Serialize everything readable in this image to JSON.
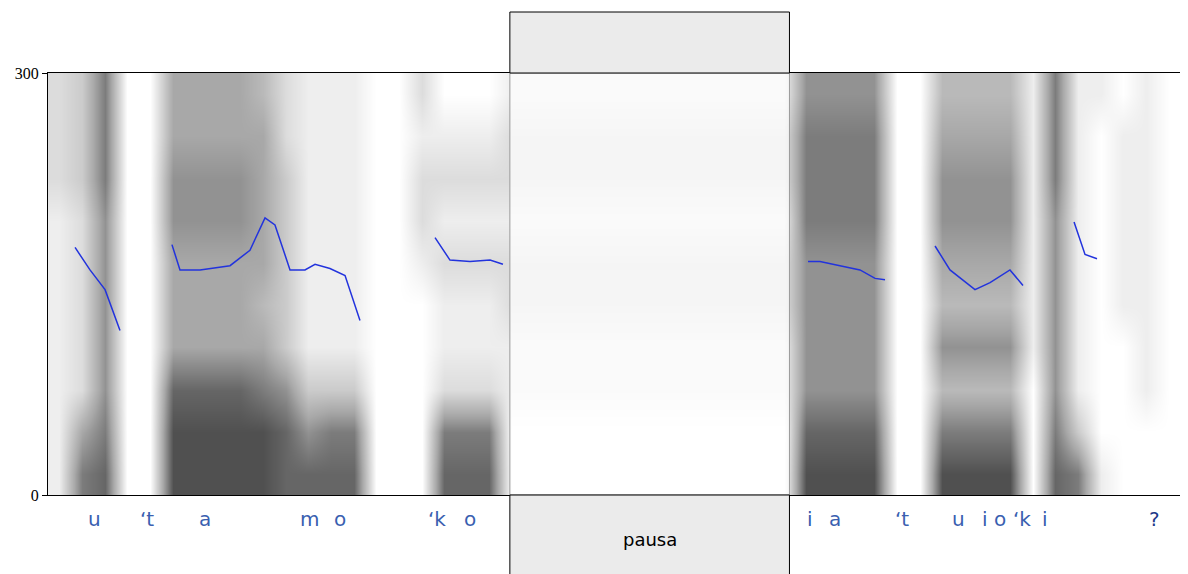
{
  "chart_data": {
    "type": "spectrogram",
    "ylim": [
      0,
      300
    ],
    "yticks": [
      0,
      300
    ],
    "xlim": [
      0,
      100
    ],
    "tick_labels": "y",
    "grid": false,
    "color": "#2233dd",
    "x": [
      2.39,
      3.71,
      5.04,
      6.36,
      null,
      10.95,
      11.66,
      13.43,
      16.08,
      17.84,
      19.17,
      20.05,
      21.38,
      22.7,
      23.59,
      24.91,
      26.24,
      27.56,
      null,
      34.19,
      35.51,
      37.28,
      39.05,
      40.19,
      null,
      67.14,
      68.2,
      69.96,
      71.73,
      73.06,
      73.94,
      null,
      78.36,
      79.68,
      81.89,
      83.22,
      84.98,
      86.13,
      null,
      90.64,
      91.61,
      92.67
    ],
    "values": [
      176,
      160,
      146,
      117,
      null,
      178,
      160,
      160,
      163,
      174,
      197,
      192,
      160,
      160,
      164,
      161,
      156,
      124,
      null,
      183,
      167,
      166,
      167,
      164,
      null,
      166,
      166,
      163,
      160,
      154,
      153,
      null,
      177,
      160,
      146,
      151,
      160,
      149,
      null,
      194,
      171,
      168
    ],
    "cells": {
      "x": [
        1,
        3,
        5,
        7,
        9,
        11,
        13,
        15,
        17,
        19,
        21,
        23,
        25,
        27,
        29,
        31,
        33,
        35,
        37,
        39,
        41,
        43,
        45,
        47,
        49,
        51,
        53,
        55,
        57,
        59,
        61,
        63,
        65,
        67,
        69,
        71,
        73,
        75,
        77,
        79,
        81,
        83,
        85,
        87,
        89,
        91,
        93,
        95,
        97,
        99
      ],
      "y": [
        15,
        45,
        75,
        105,
        135,
        165,
        195,
        225,
        255,
        285
      ],
      "zlim": [
        0,
        10
      ],
      "z": [
        [
          1,
          1,
          1,
          1,
          1,
          1,
          1,
          2,
          2,
          2
        ],
        [
          7,
          5,
          2,
          2,
          2,
          2,
          2,
          3,
          3,
          3
        ],
        [
          8,
          7,
          6,
          6,
          6,
          6,
          6,
          7,
          7,
          7
        ],
        [
          0,
          0,
          0,
          0,
          0,
          0,
          0,
          0,
          0,
          0
        ],
        [
          0,
          0,
          0,
          0,
          0,
          0,
          0,
          0,
          0,
          0
        ],
        [
          9,
          9,
          8,
          5,
          5,
          5,
          6,
          6,
          5,
          5
        ],
        [
          9,
          9,
          8,
          5,
          5,
          5,
          6,
          6,
          5,
          5
        ],
        [
          9,
          9,
          8,
          5,
          5,
          5,
          6,
          6,
          5,
          5
        ],
        [
          9,
          9,
          8,
          5,
          5,
          5,
          6,
          6,
          5,
          5
        ],
        [
          9,
          9,
          7,
          5,
          4,
          5,
          5,
          5,
          5,
          4
        ],
        [
          8,
          8,
          6,
          3,
          3,
          3,
          3,
          3,
          2,
          2
        ],
        [
          8,
          6,
          3,
          1,
          1,
          1,
          1,
          1,
          1,
          1
        ],
        [
          8,
          7,
          3,
          1,
          1,
          1,
          1,
          1,
          1,
          1
        ],
        [
          8,
          7,
          3,
          1,
          1,
          1,
          1,
          1,
          1,
          1
        ],
        [
          0,
          0,
          0,
          0,
          0,
          0,
          0,
          0,
          0,
          0
        ],
        [
          0,
          0,
          0,
          0,
          0,
          0,
          0,
          0,
          0,
          0
        ],
        [
          0,
          0,
          0,
          0,
          0,
          1,
          2,
          2,
          1,
          2
        ],
        [
          8,
          7,
          2,
          1,
          1,
          2,
          1,
          2,
          1,
          0
        ],
        [
          8,
          7,
          2,
          1,
          1,
          2,
          1,
          2,
          1,
          0
        ],
        [
          8,
          7,
          2,
          1,
          1,
          2,
          1,
          2,
          1,
          0
        ],
        [
          0,
          0,
          1,
          1,
          2,
          2,
          1,
          2,
          2,
          1
        ],
        [
          0,
          0,
          1,
          1,
          2,
          2,
          1,
          2,
          2,
          1
        ],
        [
          0,
          0,
          1,
          1,
          2,
          2,
          1,
          2,
          2,
          1
        ],
        [
          0,
          0,
          1,
          1,
          2,
          2,
          1,
          2,
          2,
          1
        ],
        [
          0,
          0,
          1,
          1,
          2,
          2,
          1,
          2,
          2,
          1
        ],
        [
          0,
          0,
          1,
          1,
          2,
          2,
          1,
          2,
          2,
          1
        ],
        [
          0,
          0,
          1,
          1,
          2,
          2,
          1,
          2,
          2,
          1
        ],
        [
          0,
          0,
          1,
          1,
          2,
          2,
          1,
          2,
          2,
          1
        ],
        [
          0,
          0,
          1,
          1,
          2,
          2,
          1,
          2,
          2,
          1
        ],
        [
          0,
          0,
          1,
          1,
          2,
          2,
          1,
          2,
          2,
          1
        ],
        [
          0,
          0,
          1,
          1,
          2,
          2,
          1,
          2,
          2,
          1
        ],
        [
          0,
          0,
          1,
          1,
          2,
          2,
          1,
          2,
          2,
          1
        ],
        [
          0,
          0,
          1,
          1,
          2,
          2,
          1,
          2,
          2,
          1
        ],
        [
          9,
          8,
          6,
          6,
          6,
          6,
          7,
          7,
          7,
          6
        ],
        [
          9,
          8,
          6,
          6,
          6,
          6,
          7,
          7,
          7,
          6
        ],
        [
          9,
          8,
          6,
          6,
          6,
          6,
          7,
          7,
          7,
          6
        ],
        [
          9,
          8,
          6,
          6,
          6,
          6,
          7,
          7,
          7,
          6
        ],
        [
          0,
          0,
          0,
          0,
          0,
          0,
          0,
          0,
          0,
          0
        ],
        [
          0,
          0,
          0,
          0,
          0,
          0,
          0,
          0,
          0,
          0
        ],
        [
          9,
          7,
          4,
          6,
          4,
          5,
          6,
          6,
          5,
          4
        ],
        [
          9,
          7,
          4,
          6,
          4,
          5,
          6,
          6,
          5,
          4
        ],
        [
          9,
          7,
          4,
          6,
          4,
          5,
          6,
          6,
          5,
          4
        ],
        [
          9,
          7,
          4,
          6,
          4,
          5,
          6,
          6,
          5,
          4
        ],
        [
          0,
          0,
          0,
          1,
          1,
          1,
          1,
          1,
          1,
          1
        ],
        [
          8,
          7,
          6,
          6,
          6,
          6,
          6,
          7,
          7,
          7
        ],
        [
          7,
          3,
          1,
          1,
          1,
          1,
          1,
          1,
          1,
          1
        ],
        [
          1,
          0,
          0,
          0,
          0,
          0,
          0,
          0,
          0,
          1
        ],
        [
          0,
          0,
          0,
          0,
          1,
          1,
          1,
          1,
          1,
          0
        ],
        [
          0,
          0,
          1,
          1,
          1,
          1,
          1,
          1,
          1,
          1
        ],
        [
          0,
          0,
          0,
          0,
          0,
          0,
          0,
          0,
          0,
          0
        ]
      ]
    },
    "segments": [
      {
        "label": "u",
        "x": 4.15
      },
      {
        "label": "‘t",
        "x": 8.75
      },
      {
        "label": "a",
        "x": 13.87
      },
      {
        "label": "m",
        "x": 23.14
      },
      {
        "label": "o",
        "x": 25.8
      },
      {
        "label": "‘k",
        "x": 34.36
      },
      {
        "label": "o",
        "x": 37.28
      },
      {
        "label": "i",
        "x": 67.31
      },
      {
        "label": "a",
        "x": 69.52
      },
      {
        "label": "‘t",
        "x": 75.44
      },
      {
        "label": "u",
        "x": 80.39
      },
      {
        "label": "i",
        "x": 82.77
      },
      {
        "label": "o",
        "x": 84.1
      },
      {
        "label": "‘k",
        "x": 86.04
      },
      {
        "label": "i",
        "x": 88.07
      },
      {
        "label": "?",
        "x": 97.79
      }
    ],
    "pause": {
      "label": "pausa",
      "xlim": [
        40.8,
        65.5
      ]
    }
  }
}
